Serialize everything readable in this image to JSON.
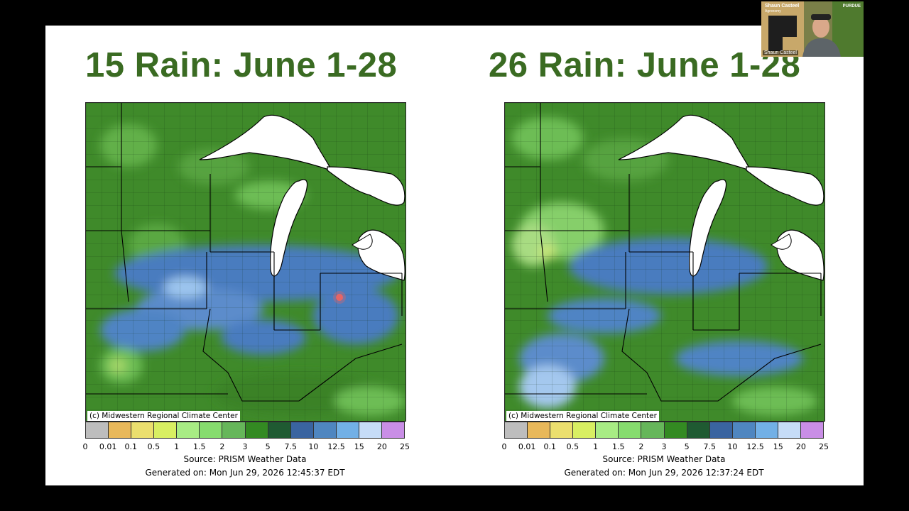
{
  "slide": {
    "left_title": "15 Rain: June 1-28",
    "right_title": "26 Rain: June 1-28"
  },
  "maps": {
    "credit": "(c) Midwestern Regional Climate Center",
    "source": "Source: PRISM Weather Data",
    "left_generated": "Generated on: Mon Jun 29, 2026 12:45:37 EDT",
    "right_generated": "Generated on: Mon Jun 29, 2026 12:37:24 EDT"
  },
  "legend": {
    "ticks": [
      "0",
      "0.01",
      "0.1",
      "0.5",
      "1",
      "1.5",
      "2",
      "3",
      "5",
      "7.5",
      "10",
      "12.5",
      "15",
      "20",
      "25"
    ],
    "colors": [
      "#bdbdbd",
      "#e8b85a",
      "#ebdf6e",
      "#d8ef62",
      "#a8ec84",
      "#86dc6e",
      "#66b65a",
      "#338a22",
      "#1f5a32",
      "#3a64a0",
      "#4f86c0",
      "#72b0e6",
      "#c6dcf7",
      "#c98ee6"
    ]
  },
  "video": {
    "name": "Shaun Casteel",
    "subtitle": "Agronomy",
    "label": "Shaun Casteel",
    "logo": "PURDUE"
  },
  "colors": {
    "title_green": "#3a6b22",
    "slide_bg": "#ffffff",
    "lake_fill": "#ffffff"
  }
}
